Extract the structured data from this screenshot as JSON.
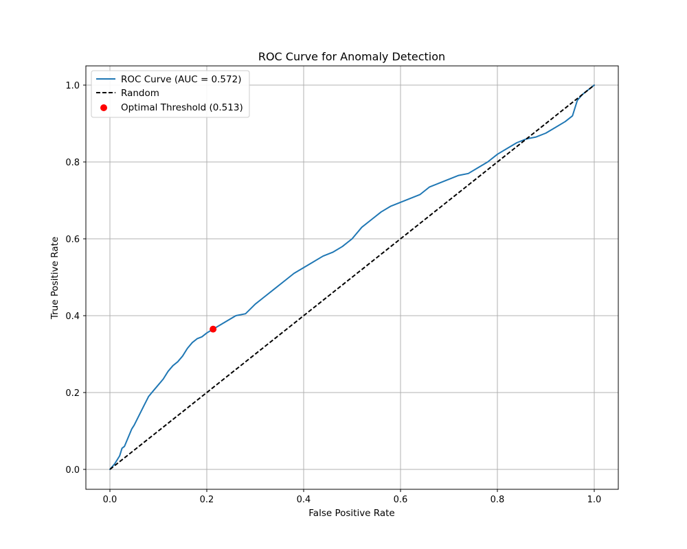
{
  "chart_data": {
    "type": "line",
    "title": "ROC Curve for Anomaly Detection",
    "xlabel": "False Positive Rate",
    "ylabel": "True Positive Rate",
    "xlim": [
      -0.05,
      1.05
    ],
    "ylim": [
      -0.05,
      1.05
    ],
    "xticks": [
      "0.0",
      "0.2",
      "0.4",
      "0.6",
      "0.8",
      "1.0"
    ],
    "yticks": [
      "0.0",
      "0.2",
      "0.4",
      "0.6",
      "0.8",
      "1.0"
    ],
    "grid": true,
    "legend_position": "upper-left",
    "series": [
      {
        "name": "ROC Curve (AUC = 0.572)",
        "style": "solid",
        "color": "#1f77b4",
        "x": [
          0.0,
          0.01,
          0.02,
          0.025,
          0.03,
          0.04,
          0.045,
          0.05,
          0.06,
          0.07,
          0.08,
          0.09,
          0.1,
          0.11,
          0.12,
          0.13,
          0.14,
          0.15,
          0.16,
          0.17,
          0.18,
          0.19,
          0.2,
          0.213,
          0.22,
          0.24,
          0.26,
          0.28,
          0.3,
          0.32,
          0.34,
          0.36,
          0.38,
          0.4,
          0.42,
          0.44,
          0.46,
          0.48,
          0.5,
          0.52,
          0.54,
          0.56,
          0.58,
          0.6,
          0.62,
          0.64,
          0.66,
          0.68,
          0.7,
          0.72,
          0.74,
          0.76,
          0.78,
          0.8,
          0.82,
          0.84,
          0.86,
          0.88,
          0.9,
          0.92,
          0.94,
          0.955,
          0.965,
          0.975,
          0.985,
          1.0
        ],
        "y": [
          0.0,
          0.015,
          0.035,
          0.055,
          0.06,
          0.09,
          0.105,
          0.115,
          0.14,
          0.165,
          0.19,
          0.205,
          0.22,
          0.235,
          0.255,
          0.27,
          0.28,
          0.295,
          0.315,
          0.33,
          0.34,
          0.345,
          0.355,
          0.365,
          0.37,
          0.385,
          0.4,
          0.405,
          0.43,
          0.45,
          0.47,
          0.49,
          0.51,
          0.525,
          0.54,
          0.555,
          0.565,
          0.58,
          0.6,
          0.63,
          0.65,
          0.67,
          0.685,
          0.695,
          0.705,
          0.715,
          0.735,
          0.745,
          0.755,
          0.765,
          0.77,
          0.785,
          0.8,
          0.82,
          0.835,
          0.85,
          0.86,
          0.865,
          0.875,
          0.89,
          0.905,
          0.92,
          0.96,
          0.975,
          0.985,
          1.0
        ]
      },
      {
        "name": "Random",
        "style": "dashed",
        "color": "#000000",
        "x": [
          0.0,
          1.0
        ],
        "y": [
          0.0,
          1.0
        ]
      }
    ],
    "points": [
      {
        "name": "Optimal Threshold (0.513)",
        "color": "#ff0000",
        "x": 0.213,
        "y": 0.365
      }
    ]
  }
}
